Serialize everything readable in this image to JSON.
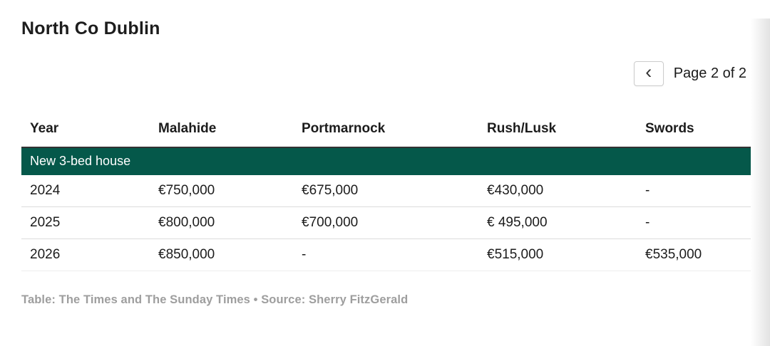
{
  "header": {
    "title": "North Co Dublin"
  },
  "pagination": {
    "label": "Page 2 of 2",
    "prev_icon": "‹"
  },
  "chart_data": {
    "type": "table",
    "title": "North Co Dublin",
    "columns": [
      "Year",
      "Malahide",
      "Portmarnock",
      "Rush/Lusk",
      "Swords"
    ],
    "section_header": "New 3-bed house",
    "rows": [
      [
        "2024",
        "€750,000",
        "€675,000",
        "€430,000",
        "-"
      ],
      [
        "2025",
        "€800,000",
        "€700,000",
        "€ 495,000",
        "-"
      ],
      [
        "2026",
        "€850,000",
        "-",
        "€515,000",
        "€535,000"
      ]
    ],
    "footer": "Table: The Times and The Sunday Times • Source: Sherry FitzGerald",
    "page": "2 of 2"
  },
  "colors": {
    "section_bg": "#05584a",
    "section_text": "#ffffff",
    "header_rule": "#333333",
    "row_rule": "#dcdcdc",
    "text": "#1c1c1c",
    "footer_text": "#9e9e9e",
    "button_border": "#cccccc"
  }
}
